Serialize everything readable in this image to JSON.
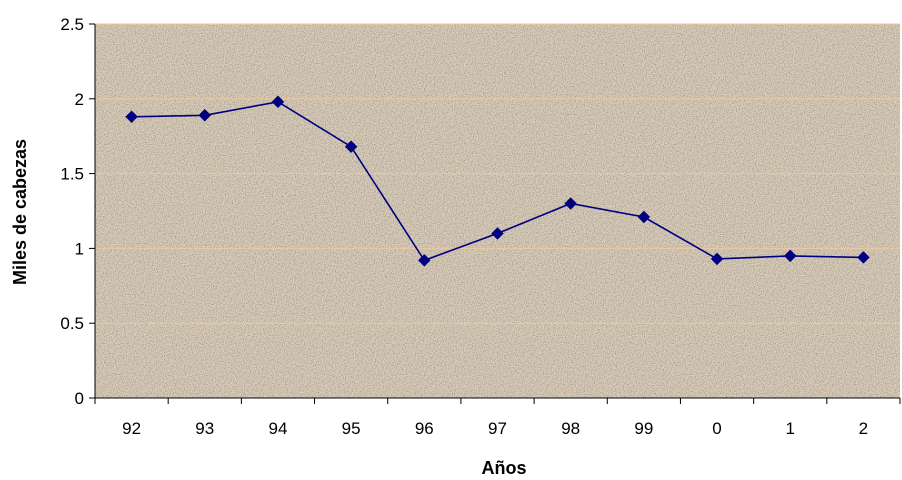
{
  "colors": {
    "plot_background": "#dcd0bc",
    "gridline": "#f0c79e",
    "axis": "#000000",
    "series_line": "#000080",
    "marker": "#000080"
  },
  "chart_data": {
    "type": "line",
    "title": "",
    "xlabel": "Años",
    "ylabel": "Miles de cabezas",
    "categories": [
      "92",
      "93",
      "94",
      "95",
      "96",
      "97",
      "98",
      "99",
      "0",
      "1",
      "2"
    ],
    "series": [
      {
        "values": [
          1.88,
          1.89,
          1.98,
          1.68,
          0.92,
          1.1,
          1.3,
          1.21,
          0.93,
          0.95,
          0.94
        ],
        "marker": "diamond"
      }
    ],
    "ylim": [
      0,
      2.5
    ],
    "yticks": [
      "0",
      "0.5",
      "1",
      "1.5",
      "2",
      "2.5"
    ],
    "grid": true,
    "legend": "none"
  }
}
